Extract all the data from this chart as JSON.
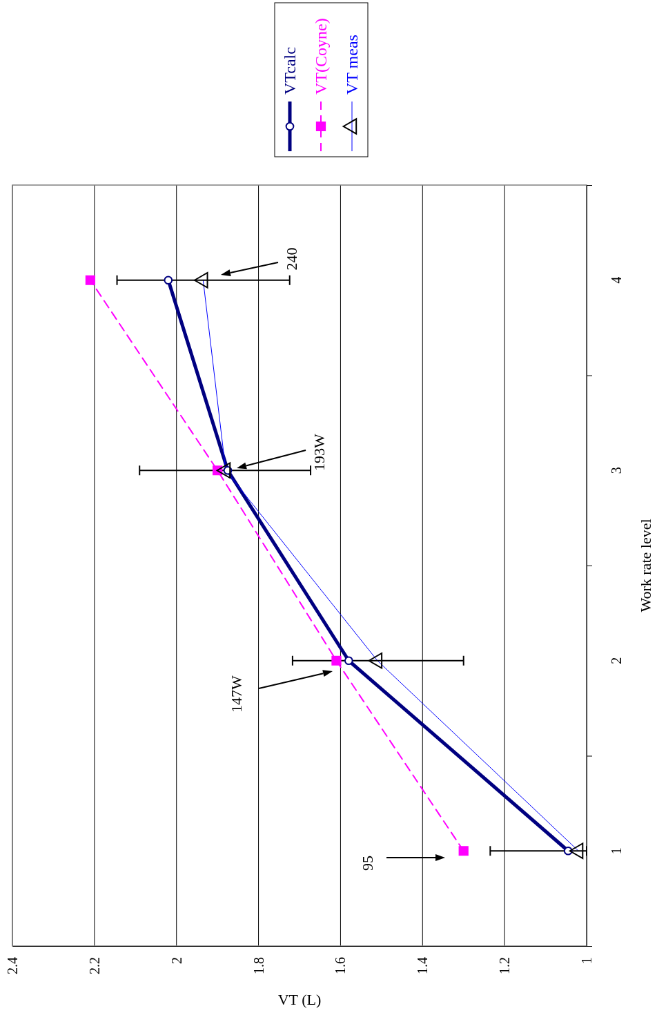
{
  "chart_data": {
    "type": "line",
    "xlabel": "VT (L)",
    "ylabel": "Work rate level",
    "xlim": [
      2.4,
      1
    ],
    "xticks": [
      1,
      1.2,
      1.4,
      1.6,
      1.8,
      2,
      2.2,
      2.4
    ],
    "ylim": [
      0.5,
      4.5
    ],
    "yticks": [
      {
        "value": 0.5,
        "label": null
      },
      1,
      {
        "value": 1.5,
        "label": null
      },
      2,
      {
        "value": 2.5,
        "label": null
      },
      3,
      {
        "value": 3.5,
        "label": null
      },
      4,
      {
        "value": 4.5,
        "label": null
      }
    ],
    "grid": "x",
    "legend": "top",
    "series": [
      {
        "name": "VTcalc",
        "color": "#000080",
        "marker": "circle",
        "line_style": "solid",
        "x": [
          1.045,
          1.58,
          1.875,
          2.02
        ],
        "values": [
          1,
          2,
          3,
          4
        ]
      },
      {
        "name": "VT(Coyne)",
        "color": "#ff00ff",
        "marker": "square",
        "line_style": "dashed",
        "x": [
          1.3,
          1.61,
          1.9,
          2.21
        ],
        "values": [
          1,
          2,
          3,
          4
        ]
      },
      {
        "name": "VT meas",
        "color": "#0000ff",
        "marker": "triangle",
        "line_style": "solid",
        "x": [
          1.02,
          1.51,
          1.88,
          1.935
        ],
        "values": [
          1,
          2,
          3,
          4
        ],
        "xerrors": [
          [
            1.0,
            1.235
          ],
          [
            1.3,
            1.717
          ],
          [
            1.673,
            2.09
          ],
          [
            1.724,
            2.145
          ]
        ]
      }
    ],
    "annotations": [
      "95",
      "147W",
      "193W",
      "240"
    ]
  }
}
